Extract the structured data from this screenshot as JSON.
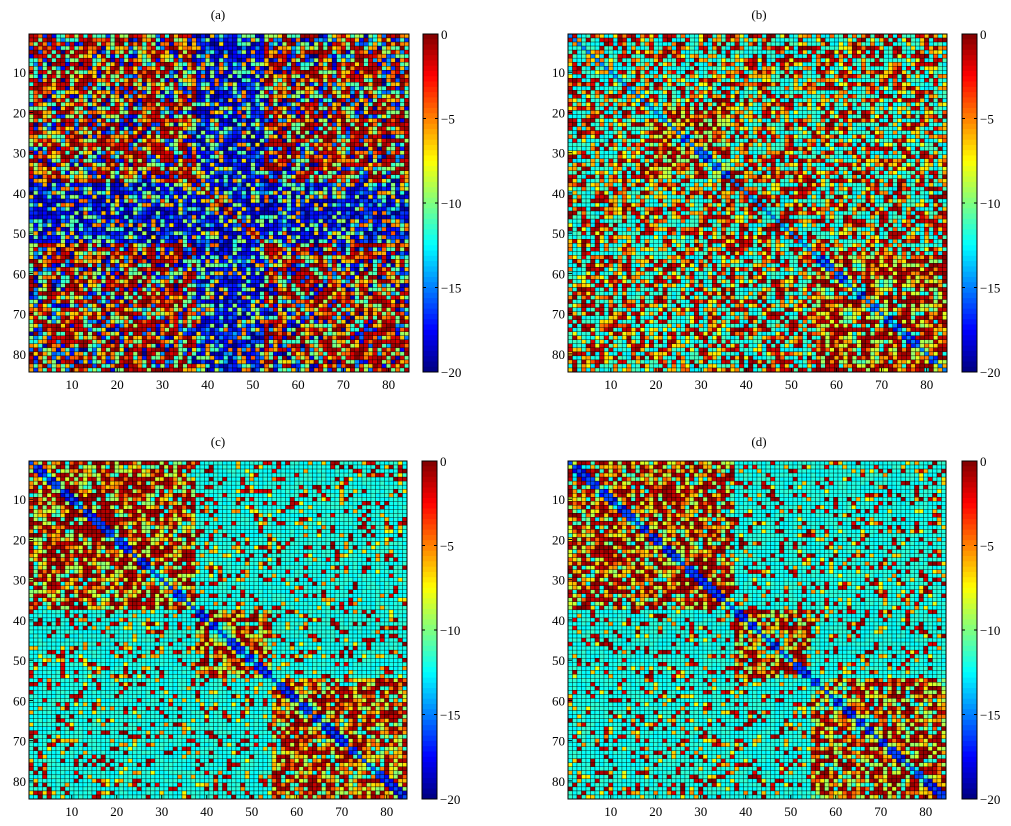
{
  "figure": {
    "panel_count": 4
  },
  "chart_data": [
    {
      "type": "heatmap",
      "title": "(a)",
      "matrix_size": 84,
      "x_ticks": [
        10,
        20,
        30,
        40,
        50,
        60,
        70,
        80
      ],
      "y_ticks": [
        10,
        20,
        30,
        40,
        50,
        60,
        70,
        80
      ],
      "colorbar": {
        "min": -20,
        "max": 0,
        "ticks": [
          0,
          -5,
          -10,
          -15,
          -20
        ],
        "colormap": "jet"
      },
      "grid": true,
      "description_pattern": "near-random high/low values with low (blue) band near columns and rows 38-52"
    },
    {
      "type": "heatmap",
      "title": "(b)",
      "matrix_size": 84,
      "x_ticks": [
        10,
        20,
        30,
        40,
        50,
        60,
        70,
        80
      ],
      "y_ticks": [
        10,
        20,
        30,
        40,
        50,
        60,
        70,
        80
      ],
      "colorbar": {
        "min": -20,
        "max": 0,
        "ticks": [
          0,
          -5,
          -10,
          -15,
          -20
        ],
        "colormap": "jet"
      },
      "grid": true,
      "blocks": [
        [
          19,
          36
        ],
        [
          56,
          84
        ]
      ]
    },
    {
      "type": "heatmap",
      "title": "(c)",
      "matrix_size": 84,
      "x_ticks": [
        10,
        20,
        30,
        40,
        50,
        60,
        70,
        80
      ],
      "y_ticks": [
        10,
        20,
        30,
        40,
        50,
        60,
        70,
        80
      ],
      "colorbar": {
        "min": -20,
        "max": 0,
        "ticks": [
          0,
          -5,
          -10,
          -15,
          -20
        ],
        "colormap": "jet"
      },
      "grid": true,
      "blocks": [
        [
          1,
          37
        ],
        [
          38,
          54
        ],
        [
          55,
          84
        ]
      ]
    },
    {
      "type": "heatmap",
      "title": "(d)",
      "matrix_size": 84,
      "x_ticks": [
        10,
        20,
        30,
        40,
        50,
        60,
        70,
        80
      ],
      "y_ticks": [
        10,
        20,
        30,
        40,
        50,
        60,
        70,
        80
      ],
      "colorbar": {
        "min": -20,
        "max": 0,
        "ticks": [
          0,
          -5,
          -10,
          -15,
          -20
        ],
        "colormap": "jet"
      },
      "grid": true,
      "blocks": [
        [
          1,
          37
        ],
        [
          38,
          54
        ],
        [
          55,
          84
        ]
      ]
    }
  ]
}
